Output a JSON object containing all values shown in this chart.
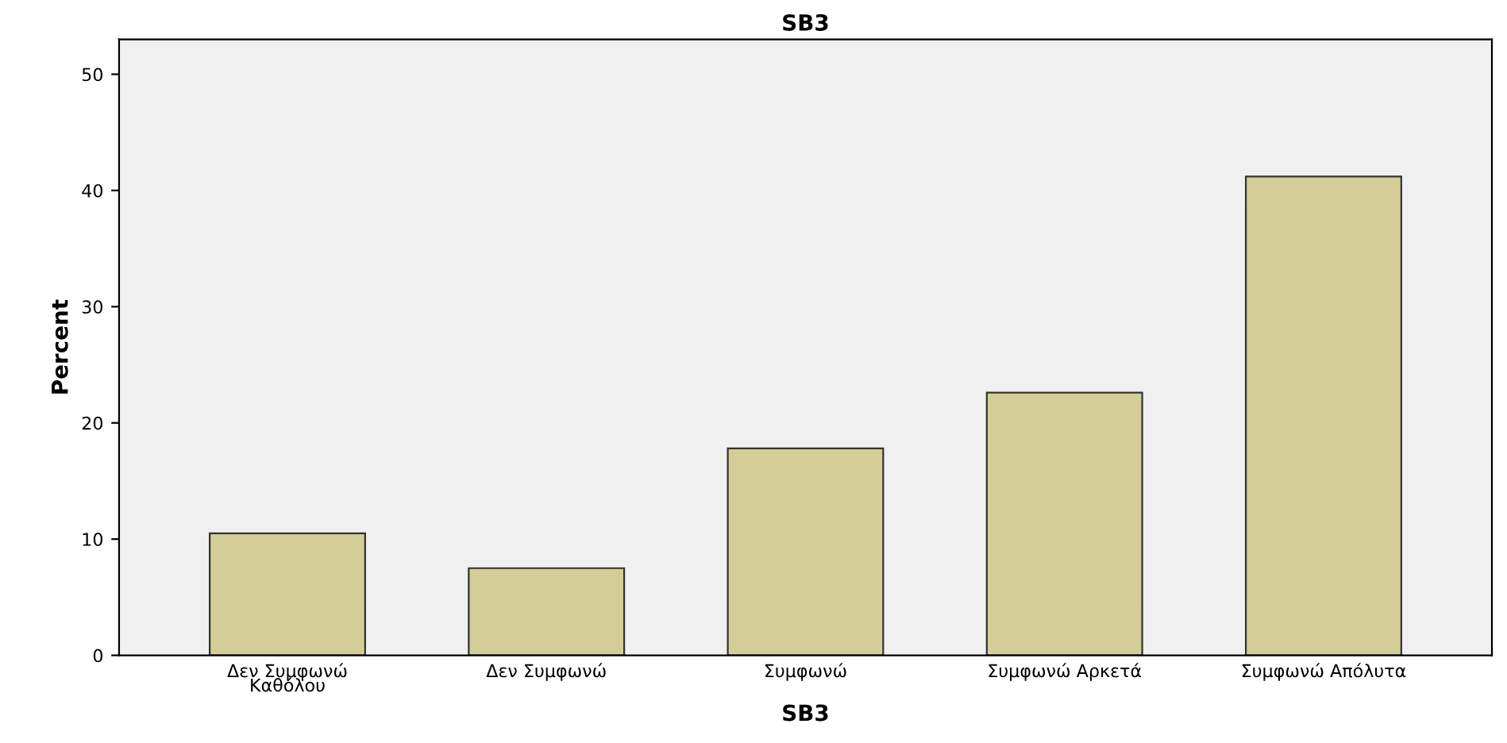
{
  "chart_data": {
    "type": "bar",
    "title": "SB3",
    "xlabel": "SB3",
    "ylabel": "Percent",
    "categories": [
      "Δεν Συμφωνώ\nΚαθόλου",
      "Δεν Συμφωνώ",
      "Συμφωνώ",
      "Συμφωνώ Αρκετά",
      "Συμφωνώ Απόλυτα"
    ],
    "values": [
      10.5,
      7.5,
      17.8,
      22.6,
      41.2
    ],
    "color": "#d3ce97",
    "ylim": [
      0,
      53
    ],
    "yticks": [
      0,
      10,
      20,
      30,
      40,
      50
    ],
    "grid": false,
    "legend": false
  }
}
